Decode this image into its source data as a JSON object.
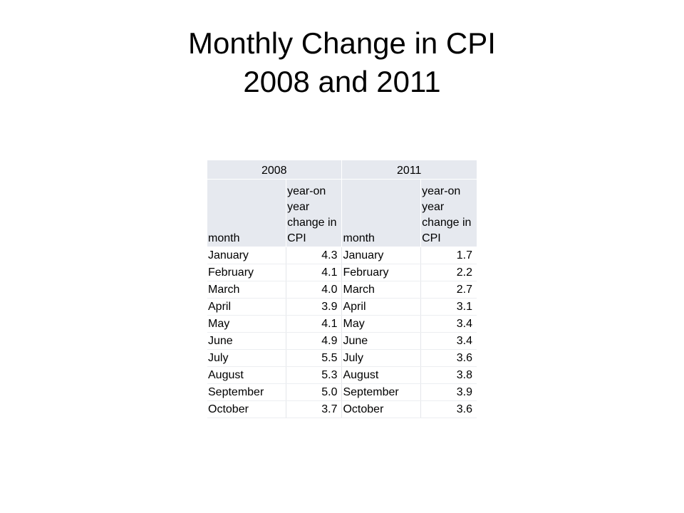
{
  "slide": {
    "title_line1": "Monthly Change in CPI",
    "title_line2": "2008 and 2011"
  },
  "table": {
    "years": [
      "2008",
      "2011"
    ],
    "headers": {
      "month": "month",
      "change": "year-on year change in CPI"
    },
    "rows": [
      {
        "month_2008": "January",
        "cpi_2008": "4.3",
        "month_2011": "January",
        "cpi_2011": "1.7"
      },
      {
        "month_2008": "February",
        "cpi_2008": "4.1",
        "month_2011": "February",
        "cpi_2011": "2.2"
      },
      {
        "month_2008": "March",
        "cpi_2008": "4.0",
        "month_2011": "March",
        "cpi_2011": "2.7"
      },
      {
        "month_2008": "April",
        "cpi_2008": "3.9",
        "month_2011": "April",
        "cpi_2011": "3.1"
      },
      {
        "month_2008": "May",
        "cpi_2008": "4.1",
        "month_2011": "May",
        "cpi_2011": "3.4"
      },
      {
        "month_2008": "June",
        "cpi_2008": "4.9",
        "month_2011": "June",
        "cpi_2011": "3.4"
      },
      {
        "month_2008": "July",
        "cpi_2008": "5.5",
        "month_2011": "July",
        "cpi_2011": "3.6"
      },
      {
        "month_2008": "August",
        "cpi_2008": "5.3",
        "month_2011": "August",
        "cpi_2011": "3.8"
      },
      {
        "month_2008": "September",
        "cpi_2008": "5.0",
        "month_2011": "September",
        "cpi_2011": "3.9"
      },
      {
        "month_2008": "October",
        "cpi_2008": "3.7",
        "month_2011": "October",
        "cpi_2011": "3.6"
      }
    ]
  },
  "colors": {
    "header_fill": "#e6e9ef",
    "text": "#000000",
    "background": "#ffffff"
  }
}
